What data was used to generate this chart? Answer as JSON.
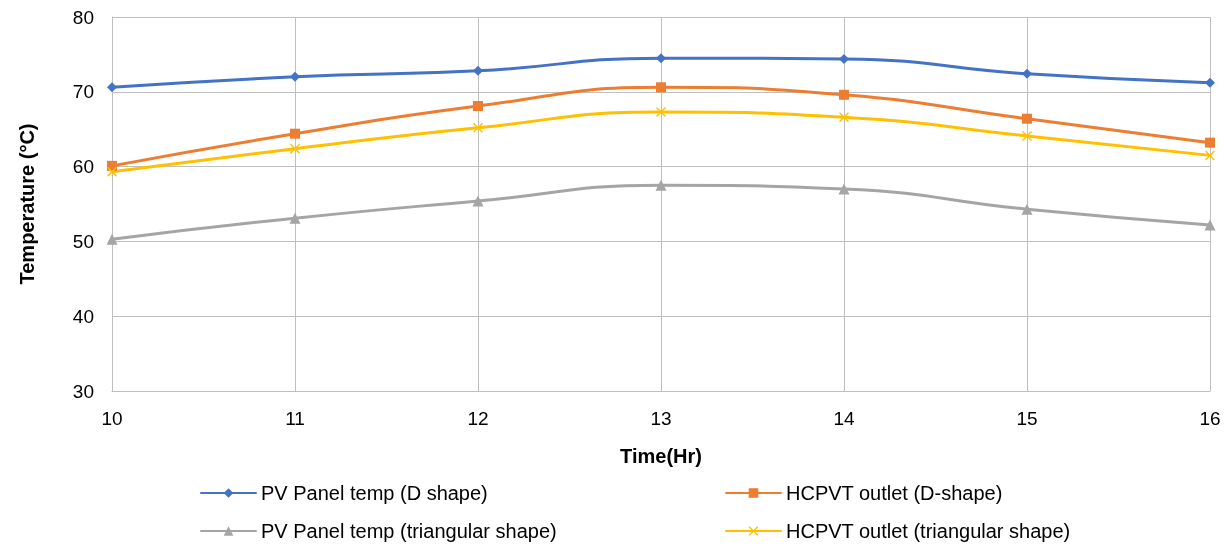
{
  "chart_data": {
    "type": "line",
    "xlabel": "Time(Hr)",
    "ylabel": "Temperature (°C)",
    "x": [
      10,
      11,
      12,
      13,
      14,
      15,
      16
    ],
    "xlim": [
      10,
      16
    ],
    "xticks": [
      10,
      11,
      12,
      13,
      14,
      15,
      16
    ],
    "ylim": [
      30,
      80
    ],
    "yticks": [
      30,
      40,
      50,
      60,
      70,
      80
    ],
    "grid": true,
    "legend": "bottom",
    "line_style": "solid",
    "series": [
      {
        "name": "PV Panel temp (D shape)",
        "color": "#4472c4",
        "marker": "diamond",
        "values": [
          70.6,
          72.0,
          72.8,
          74.5,
          74.4,
          72.4,
          71.2
        ]
      },
      {
        "name": "HCPVT outlet (D-shape)",
        "color": "#ed7d31",
        "marker": "square",
        "values": [
          60.1,
          64.4,
          68.1,
          70.6,
          69.6,
          66.4,
          63.2
        ]
      },
      {
        "name": "PV Panel temp (triangular shape)",
        "color": "#a5a5a5",
        "marker": "triangle",
        "values": [
          50.3,
          53.1,
          55.4,
          57.5,
          57.0,
          54.3,
          52.2
        ]
      },
      {
        "name": "HCPVT outlet (triangular shape)",
        "color": "#ffc000",
        "marker": "cross",
        "values": [
          59.3,
          62.4,
          65.2,
          67.3,
          66.6,
          64.1,
          61.5
        ]
      }
    ]
  }
}
